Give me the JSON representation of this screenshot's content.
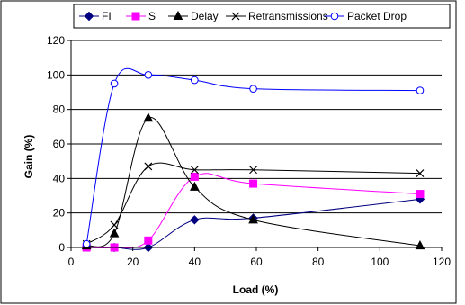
{
  "chart_data": {
    "type": "line",
    "xlabel": "Load (%)",
    "ylabel": "Gain (%)",
    "xlim": [
      0,
      120
    ],
    "ylim": [
      0,
      120
    ],
    "xticks": [
      0,
      20,
      40,
      60,
      80,
      100,
      120
    ],
    "yticks": [
      0,
      20,
      40,
      60,
      80,
      100,
      120
    ],
    "grid": "horizontal",
    "legend_position": "top",
    "series": [
      {
        "name": "FI",
        "marker": "diamond",
        "color": "#000080",
        "x": [
          5,
          14,
          25,
          40,
          59,
          113
        ],
        "y": [
          0.5,
          0,
          0,
          16,
          17,
          28
        ]
      },
      {
        "name": "S",
        "marker": "square",
        "color": "#ff00ff",
        "x": [
          5,
          14,
          25,
          40,
          59,
          113
        ],
        "y": [
          0,
          0,
          4,
          41,
          37,
          31
        ]
      },
      {
        "name": "Delay",
        "marker": "triangle",
        "color": "#000000",
        "x": [
          5,
          14,
          25,
          40,
          59,
          113
        ],
        "y": [
          1,
          8,
          75,
          35,
          16,
          1
        ]
      },
      {
        "name": "Retransmissions",
        "marker": "x",
        "color": "#000000",
        "x": [
          5,
          14,
          25,
          40,
          59,
          113
        ],
        "y": [
          2,
          13,
          47,
          45,
          45,
          43
        ]
      },
      {
        "name": "Packet Drop",
        "marker": "circle",
        "color": "#0000ff",
        "x": [
          5,
          14,
          25,
          40,
          59,
          113
        ],
        "y": [
          2,
          95,
          100,
          97,
          92,
          91
        ]
      }
    ]
  }
}
